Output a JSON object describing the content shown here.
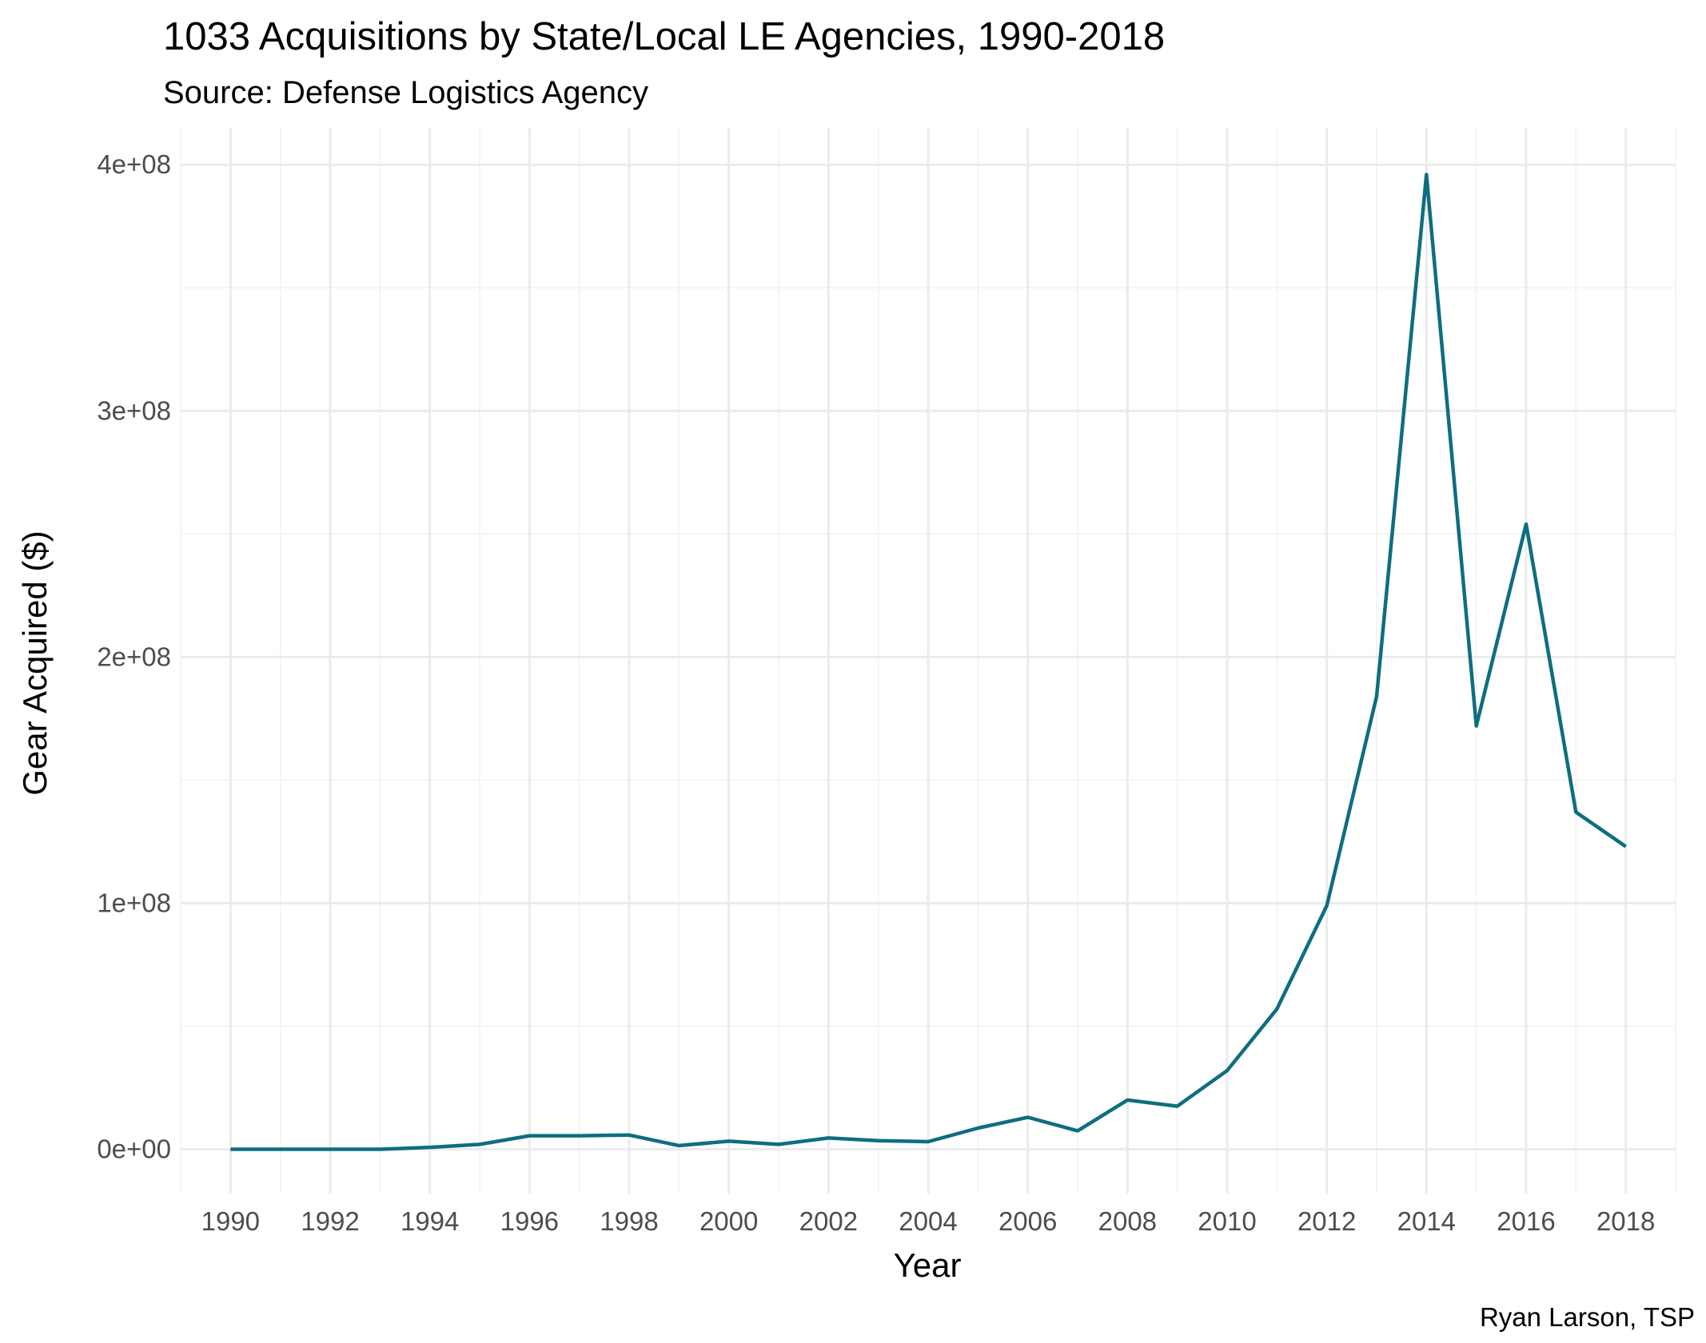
{
  "chart_data": {
    "type": "line",
    "title": "1033 Acquisitions by State/Local LE Agencies, 1990-2018",
    "subtitle": "Source: Defense Logistics Agency",
    "caption": "Ryan Larson, TSP",
    "xlabel": "Year",
    "ylabel": "Gear Acquired ($)",
    "xlim": [
      1989,
      2019
    ],
    "ylim": [
      -18000000,
      415000000
    ],
    "x_ticks": [
      1990,
      1992,
      1994,
      1996,
      1998,
      2000,
      2002,
      2004,
      2006,
      2008,
      2010,
      2012,
      2014,
      2016,
      2018
    ],
    "x_tick_labels": [
      "1990",
      "1992",
      "1994",
      "1996",
      "1998",
      "2000",
      "2002",
      "2004",
      "2006",
      "2008",
      "2010",
      "2012",
      "2014",
      "2016",
      "2018"
    ],
    "y_ticks": [
      0,
      100000000,
      200000000,
      300000000,
      400000000
    ],
    "y_tick_labels": [
      "0e+00",
      "1e+08",
      "2e+08",
      "3e+08",
      "4e+08"
    ],
    "grid": true,
    "line_color": "#0e6e7f",
    "x": [
      1990,
      1991,
      1992,
      1993,
      1994,
      1995,
      1996,
      1997,
      1998,
      1999,
      2000,
      2001,
      2002,
      2003,
      2004,
      2005,
      2006,
      2007,
      2008,
      2009,
      2010,
      2011,
      2012,
      2013,
      2014,
      2015,
      2016,
      2017,
      2018
    ],
    "values": [
      0,
      0,
      0,
      0,
      800000,
      2000000,
      5500000,
      5500000,
      5800000,
      1500000,
      3300000,
      2000000,
      4600000,
      3500000,
      3100000,
      8600000,
      13000000,
      7500000,
      20000000,
      17500000,
      32000000,
      57000000,
      99000000,
      184000000,
      396000000,
      172000000,
      254000000,
      137000000,
      123000000
    ]
  }
}
